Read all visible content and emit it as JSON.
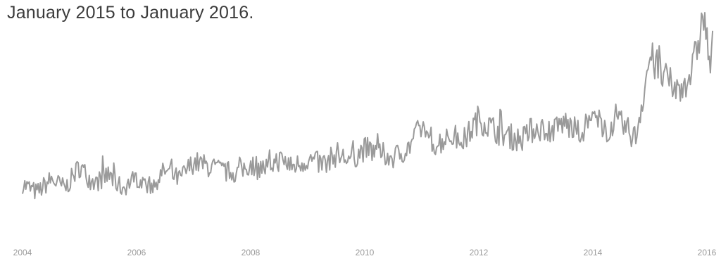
{
  "caption": "January 2015 to January 2016.",
  "chart_data": {
    "type": "line",
    "title": "",
    "xlabel": "",
    "ylabel": "",
    "x_ticks": [
      "2004",
      "2006",
      "2008",
      "2010",
      "2012",
      "2014",
      "2016"
    ],
    "xlim": [
      2004.0,
      2016.1
    ],
    "ylim": [
      0,
      100
    ],
    "grid": false,
    "legend": "none",
    "line_color": "#9a9a9a",
    "series": [
      {
        "x": [
          2004.0,
          2004.25,
          2004.5,
          2004.75,
          2005.0,
          2005.25,
          2005.5,
          2005.75,
          2006.0,
          2006.25,
          2006.5,
          2006.75,
          2007.0,
          2007.25,
          2007.5,
          2007.75,
          2008.0,
          2008.25,
          2008.5,
          2008.75,
          2009.0,
          2009.25,
          2009.5,
          2009.75,
          2010.0,
          2010.25,
          2010.5,
          2010.75,
          2011.0,
          2011.25,
          2011.5,
          2011.75,
          2012.0,
          2012.25,
          2012.5,
          2012.75,
          2013.0,
          2013.25,
          2013.5,
          2013.75,
          2014.0,
          2014.25,
          2014.5,
          2014.75,
          2015.0,
          2015.25,
          2015.5,
          2015.75,
          2015.95,
          2016.05
        ],
        "values": [
          22,
          18,
          24,
          20,
          30,
          22,
          26,
          20,
          25,
          21,
          28,
          24,
          32,
          30,
          28,
          27,
          31,
          29,
          33,
          30,
          33,
          31,
          35,
          33,
          38,
          36,
          34,
          38,
          48,
          40,
          44,
          42,
          52,
          47,
          44,
          42,
          48,
          46,
          50,
          45,
          52,
          47,
          49,
          43,
          80,
          70,
          64,
          74,
          100,
          76
        ]
      }
    ]
  }
}
